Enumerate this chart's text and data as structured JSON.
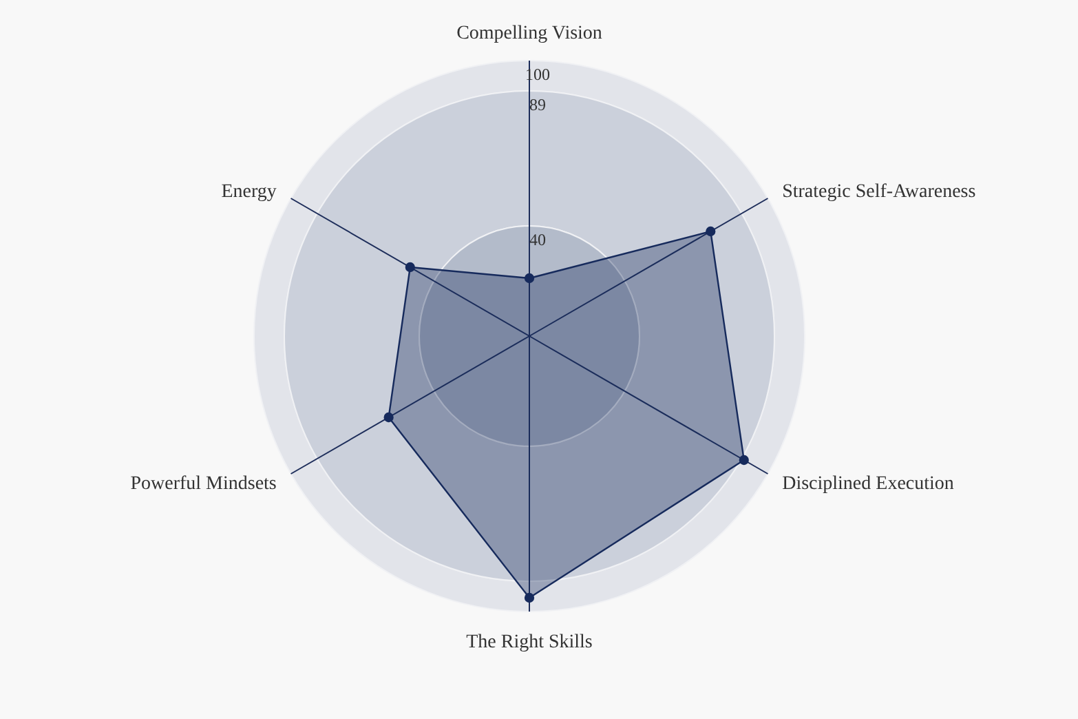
{
  "chart_data": {
    "type": "radar",
    "categories": [
      "Compelling Vision",
      "Strategic Self-Awareness",
      "Disciplined Execution",
      "The Right Skills",
      "Powerful Mindsets",
      "Energy"
    ],
    "series": [
      {
        "color": "#162a5c",
        "values": [
          21,
          76,
          90,
          95,
          59,
          50
        ]
      }
    ],
    "ylim": [
      0,
      100
    ],
    "yticks": [
      40,
      89,
      100
    ],
    "marker": "circle",
    "grid": true
  }
}
